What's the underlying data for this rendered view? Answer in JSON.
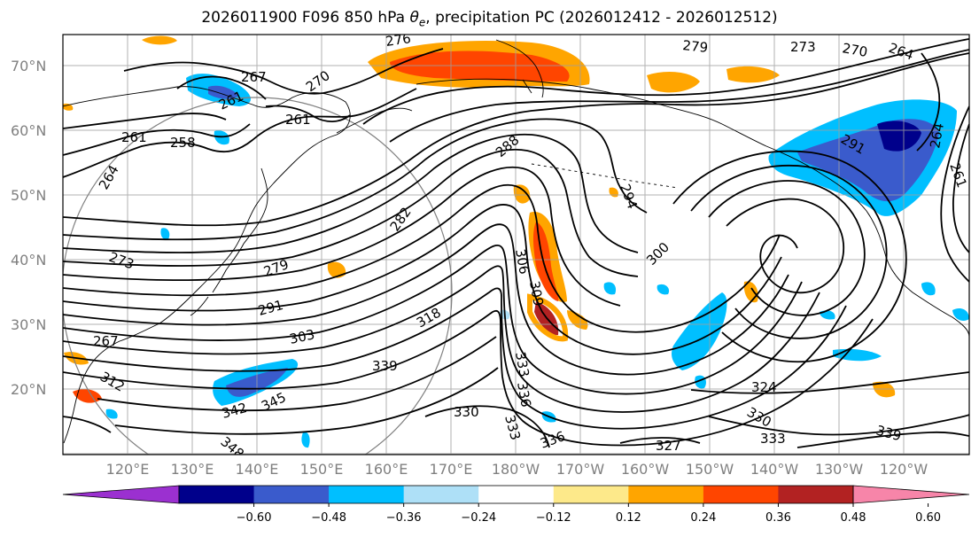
{
  "title": {
    "prefix": "2026011900 F096 850 hPa ",
    "theta": "θ",
    "theta_sub": "e",
    "suffix": ", precipitation PC (2026012412 - 2026012512)"
  },
  "map": {
    "lat_labels": [
      "70°N",
      "60°N",
      "50°N",
      "40°N",
      "30°N",
      "20°N"
    ],
    "lon_labels": [
      "120°E",
      "130°E",
      "140°E",
      "150°E",
      "160°E",
      "170°E",
      "180°W",
      "170°W",
      "160°W",
      "150°W",
      "140°W",
      "130°W",
      "120°W"
    ],
    "contour_labels": [
      "276",
      "279",
      "273",
      "270",
      "264",
      "267",
      "270",
      "261",
      "261",
      "258",
      "264",
      "261",
      "288",
      "291",
      "294",
      "300",
      "303",
      "306",
      "309",
      "282",
      "279",
      "273",
      "291",
      "318",
      "339",
      "342",
      "345",
      "348",
      "330",
      "333",
      "336",
      "333",
      "327",
      "324",
      "330",
      "333",
      "339",
      "336",
      "312",
      "267",
      "264",
      "261"
    ],
    "colors": {
      "ocean": "#ffffff",
      "coast": "#000000",
      "grid": "#a0a0a0"
    }
  },
  "colorbar": {
    "colors": [
      "#9b30d0",
      "#00008b",
      "#3a5bcc",
      "#00bfff",
      "#aee0f7",
      "#ffffff",
      "#fde98a",
      "#ffa500",
      "#ff4500",
      "#b22222",
      "#f785a9"
    ],
    "ticks": [
      "−0.60",
      "−0.48",
      "−0.36",
      "−0.24",
      "−0.12",
      "0.12",
      "0.24",
      "0.36",
      "0.48",
      "0.60"
    ]
  }
}
